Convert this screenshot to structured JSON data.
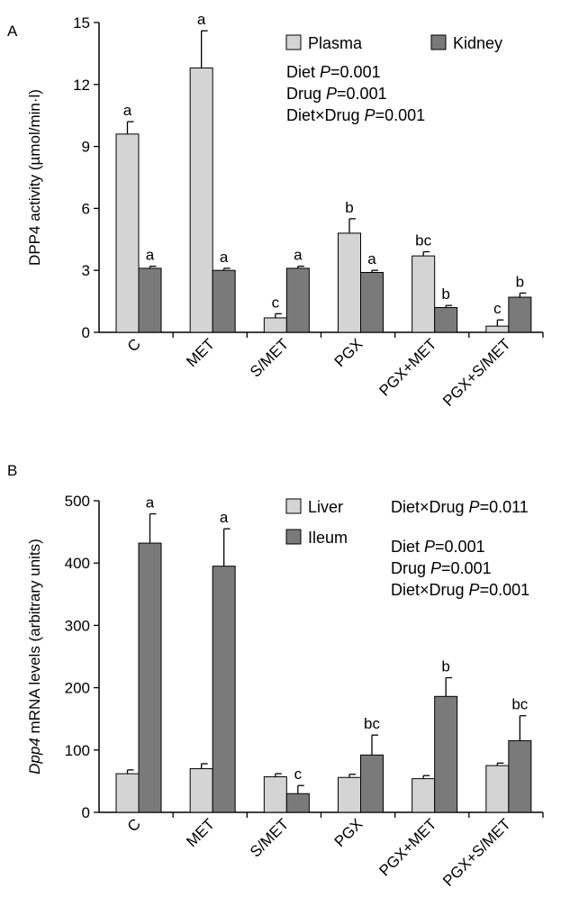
{
  "chart_data": [
    {
      "panel": "A",
      "type": "bar",
      "ylabel": "DPP4 activity (µmol/min·l)",
      "ylim": [
        0,
        15
      ],
      "yticks": [
        0,
        3,
        6,
        9,
        12,
        15
      ],
      "categories": [
        "C",
        "MET",
        "S/MET",
        "PGX",
        "PGX+MET",
        "PGX+S/MET"
      ],
      "legend_position": "top-right",
      "series": [
        {
          "name": "Plasma",
          "color": "#d4d4d4",
          "values": [
            9.6,
            12.8,
            0.7,
            4.8,
            3.7,
            0.3
          ],
          "errors": [
            0.6,
            1.8,
            0.2,
            0.7,
            0.2,
            0.3
          ],
          "letters": [
            "a",
            "a",
            "c",
            "b",
            "bc",
            "c"
          ]
        },
        {
          "name": "Kidney",
          "color": "#7a7a7a",
          "values": [
            3.1,
            3.0,
            3.1,
            2.9,
            1.2,
            1.7
          ],
          "errors": [
            0.1,
            0.1,
            0.1,
            0.1,
            0.1,
            0.2
          ],
          "letters": [
            "a",
            "a",
            "a",
            "a",
            "b",
            "b"
          ]
        }
      ],
      "annotations": [
        {
          "label": "Diet ",
          "p": "P",
          "value": "=0.001"
        },
        {
          "label": "Drug ",
          "p": "P",
          "value": "=0.001"
        },
        {
          "label": "Diet×Drug ",
          "p": "P",
          "value": "=0.001"
        }
      ]
    },
    {
      "panel": "B",
      "type": "bar",
      "ylabel_italic": "Dpp4",
      "ylabel": " mRNA levels (arbitrary units)",
      "ylim": [
        0,
        500
      ],
      "yticks": [
        0,
        100,
        200,
        300,
        400,
        500
      ],
      "categories": [
        "C",
        "MET",
        "S/MET",
        "PGX",
        "PGX+MET",
        "PGX+S/MET"
      ],
      "legend_position": "top",
      "series": [
        {
          "name": "Liver",
          "color": "#d4d4d4",
          "values": [
            62,
            70,
            57,
            56,
            54,
            75
          ],
          "errors": [
            6,
            8,
            5,
            5,
            5,
            4
          ],
          "letters": [
            "",
            "",
            "",
            "",
            "",
            ""
          ]
        },
        {
          "name": "Ileum",
          "color": "#7a7a7a",
          "values": [
            432,
            395,
            30,
            92,
            186,
            115
          ],
          "errors": [
            47,
            60,
            13,
            32,
            30,
            40
          ],
          "letters": [
            "a",
            "a",
            "c",
            "bc",
            "b",
            "bc"
          ]
        }
      ],
      "annotations_liver": [
        {
          "label": "Diet×Drug ",
          "p": "P",
          "value": "=0.011"
        }
      ],
      "annotations_ileum": [
        {
          "label": "Diet ",
          "p": "P",
          "value": "=0.001"
        },
        {
          "label": "Drug ",
          "p": "P",
          "value": "=0.001"
        },
        {
          "label": "Diet×Drug ",
          "p": "P",
          "value": "=0.001"
        }
      ]
    }
  ]
}
